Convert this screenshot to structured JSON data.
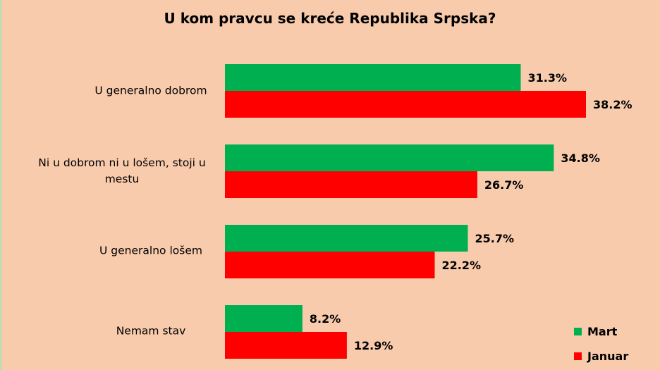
{
  "chart_data": {
    "type": "bar",
    "orientation": "horizontal",
    "title": "U kom pravcu se kreće Republika Srpska?",
    "categories": [
      "U generalno dobrom",
      "Ni u dobrom ni u lošem, stoji u mestu",
      "U generalno lošem",
      "Nemam stav"
    ],
    "series": [
      {
        "name": "Mart",
        "color": "#00b050",
        "values": [
          31.3,
          34.8,
          25.7,
          8.2
        ],
        "labels": [
          "31.3%",
          "34.8%",
          "25.7%",
          "8.2%"
        ]
      },
      {
        "name": "Januar",
        "color": "#ff0000",
        "values": [
          38.2,
          26.7,
          22.2,
          12.9
        ],
        "labels": [
          "38.2%",
          "26.7%",
          "22.2%",
          "12.9%"
        ]
      }
    ],
    "xlim": [
      0,
      40
    ],
    "grid": false,
    "legend": "bottom-right"
  }
}
